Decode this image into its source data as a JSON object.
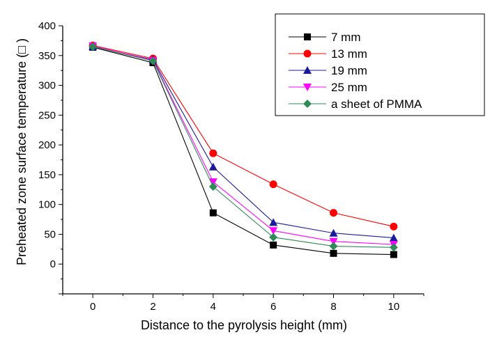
{
  "chart_data": {
    "type": "line",
    "title": "",
    "xlabel": "Distance to the pyrolysis height (mm)",
    "ylabel": "Preheated zone surface temperature (□ )",
    "x": [
      0,
      2,
      4,
      6,
      8,
      10
    ],
    "xlim": [
      -1,
      11
    ],
    "ylim": [
      -50,
      400
    ],
    "xticks": [
      "0",
      "2",
      "4",
      "6",
      "8",
      "10"
    ],
    "yticks": [
      "0",
      "50",
      "100",
      "150",
      "200",
      "250",
      "300",
      "350",
      "400"
    ],
    "grid": false,
    "legend_position": "top-right",
    "series": [
      {
        "name": "7 mm",
        "color": "#000000",
        "marker": "square",
        "values": [
          364,
          338,
          86,
          32,
          18,
          16
        ]
      },
      {
        "name": "13 mm",
        "color": "#ff0000",
        "marker": "circle",
        "values": [
          367,
          345,
          186,
          134,
          86,
          63
        ]
      },
      {
        "name": "19 mm",
        "color": "#1a1a9c",
        "marker": "triangle-up",
        "values": [
          365,
          343,
          163,
          70,
          52,
          44
        ]
      },
      {
        "name": "25 mm",
        "color": "#ff00ff",
        "marker": "triangle-down",
        "values": [
          366,
          342,
          138,
          56,
          38,
          33
        ]
      },
      {
        "name": "a sheet of PMMA",
        "color": "#2e8b57",
        "marker": "diamond",
        "values": [
          365,
          341,
          130,
          45,
          30,
          28
        ]
      }
    ]
  }
}
